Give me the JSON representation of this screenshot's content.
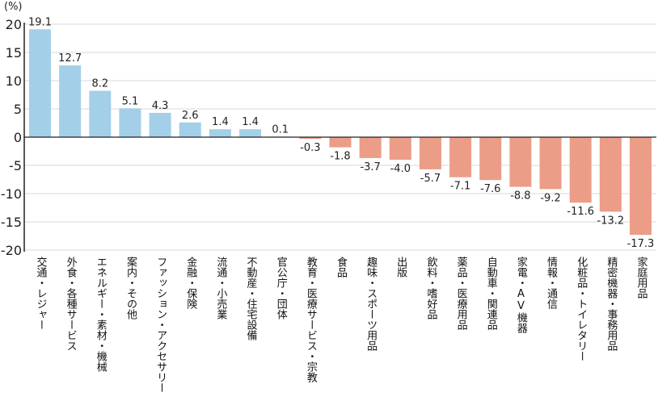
{
  "chart_data": {
    "type": "bar",
    "title": "",
    "unit_label": "(%)",
    "xlabel": "",
    "ylabel": "(%)",
    "ylim": [
      -20,
      20
    ],
    "yticks": [
      20,
      15,
      10,
      5,
      0,
      -5,
      -10,
      -15,
      -20
    ],
    "ytick_labels": [
      "20",
      "15",
      "10",
      "5",
      "0",
      "-5",
      "-10",
      "-15",
      "-20"
    ],
    "grid": true,
    "legend": "none",
    "categories": [
      "交通・レジャー",
      "外食・各種サービス",
      "エネルギー・素材・機械",
      "案内・その他",
      "ファッション・アクセサリー",
      "金融・保険",
      "流通・小売業",
      "不動産・住宅設備",
      "官公庁・団体",
      "教育・医療サービス・宗教",
      "食品",
      "趣味・スポーツ用品",
      "出版",
      "飲料・嗜好品",
      "薬品・医療用品",
      "自動車・関連品",
      "家電・AV機器",
      "情報・通信",
      "化粧品・トイレタリー",
      "精密機器・事務用品",
      "家庭用品"
    ],
    "values": [
      19.1,
      12.7,
      8.2,
      5.1,
      4.3,
      2.6,
      1.4,
      1.4,
      0.1,
      -0.3,
      -1.8,
      -3.7,
      -4.0,
      -5.7,
      -7.1,
      -7.6,
      -8.8,
      -9.2,
      -11.6,
      -13.2,
      -17.3
    ],
    "value_labels": [
      "19.1",
      "12.7",
      "8.2",
      "5.1",
      "4.3",
      "2.6",
      "1.4",
      "1.4",
      "0.1",
      "-0.3",
      "-1.8",
      "-3.7",
      "-4.0",
      "-5.7",
      "-7.1",
      "-7.6",
      "-8.8",
      "-9.2",
      "-11.6",
      "-13.2",
      "-17.3"
    ],
    "colors": {
      "positive": "#a3cfe8",
      "negative": "#eb9d88",
      "grid": "#e6e6e6",
      "axis": "#222222"
    }
  }
}
